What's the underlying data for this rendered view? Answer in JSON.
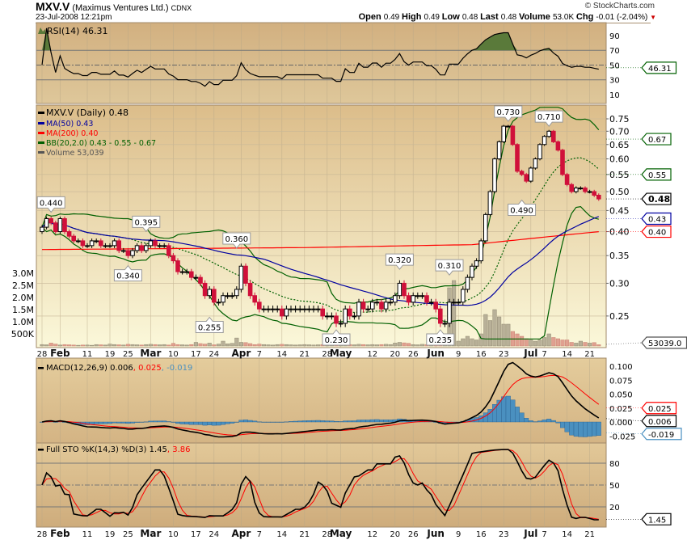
{
  "header": {
    "symbol": "MXV.V",
    "company": "(Maximus Ventures Ltd.)",
    "exchange": "CDNX",
    "datetime": "23-Jul-2008 12:21pm",
    "copyright": "© StockCharts.com",
    "quote": [
      {
        "label": "Open",
        "value": "0.49"
      },
      {
        "label": "High",
        "value": "0.49"
      },
      {
        "label": "Low",
        "value": "0.48"
      },
      {
        "label": "Last",
        "value": "0.48"
      },
      {
        "label": "Volume",
        "value": "53.0K"
      },
      {
        "label": "Chg",
        "value": "-0.01 (-2.04%)"
      }
    ],
    "change_direction": "down"
  },
  "colors": {
    "up": "#000000",
    "down": "#d0103a",
    "ma50": "#0000a0",
    "ma200": "#ff0000",
    "bb": "#006000",
    "macd_signal": "#ff0000",
    "histogram": "#4a90c0",
    "sto_d": "#ff0000",
    "rsi_fill": "#5a7a3a"
  },
  "chart_data": {
    "type": "candlestick",
    "price_scale": "log",
    "price_ylim": [
      0.22,
      0.8
    ],
    "grid": true,
    "legend": {
      "price": "MXV.V (Daily) 0.48",
      "ma50": "MA(50) 0.43",
      "ma200": "MA(200) 0.40",
      "bb": "BB(20,2.0) 0.43 - 0.55 - 0.67",
      "volume": "Volume 53,039"
    },
    "price_ticks": [
      "0.75",
      "0.70",
      "0.65",
      "0.60",
      "0.55",
      "0.50",
      "0.45",
      "0.40",
      "0.35",
      "0.30",
      "0.25"
    ],
    "volume_ticks": [
      "3.0M",
      "2.5M",
      "2.0M",
      "1.5M",
      "1.0M",
      "500K"
    ],
    "right_tags": [
      {
        "label": "0.67",
        "value": 0.67,
        "color": "#006000"
      },
      {
        "label": "0.55",
        "value": 0.55,
        "color": "#006000"
      },
      {
        "label": "0.48",
        "value": 0.48,
        "color": "#000000"
      },
      {
        "label": "0.43",
        "value": 0.43,
        "color": "#0000a0"
      },
      {
        "label": "0.40",
        "value": 0.4,
        "color": "#ff0000"
      }
    ],
    "volume_tag": "53039.0",
    "dates": [
      "01-28",
      "01-29",
      "01-30",
      "01-31",
      "02-01",
      "02-04",
      "02-05",
      "02-06",
      "02-07",
      "02-08",
      "02-11",
      "02-12",
      "02-13",
      "02-14",
      "02-15",
      "02-19",
      "02-20",
      "02-21",
      "02-22",
      "02-25",
      "02-26",
      "02-27",
      "02-28",
      "02-29",
      "03-03",
      "03-04",
      "03-05",
      "03-06",
      "03-07",
      "03-10",
      "03-11",
      "03-12",
      "03-13",
      "03-14",
      "03-17",
      "03-18",
      "03-19",
      "03-20",
      "03-24",
      "03-25",
      "03-26",
      "03-27",
      "03-28",
      "03-31",
      "04-01",
      "04-02",
      "04-03",
      "04-04",
      "04-07",
      "04-08",
      "04-09",
      "04-10",
      "04-11",
      "04-14",
      "04-15",
      "04-16",
      "04-17",
      "04-18",
      "04-21",
      "04-22",
      "04-23",
      "04-24",
      "04-25",
      "04-28",
      "04-29",
      "04-30",
      "05-01",
      "05-02",
      "05-05",
      "05-06",
      "05-07",
      "05-08",
      "05-09",
      "05-12",
      "05-13",
      "05-14",
      "05-15",
      "05-16",
      "05-20",
      "05-21",
      "05-22",
      "05-23",
      "05-26",
      "05-27",
      "05-28",
      "05-29",
      "05-30",
      "06-02",
      "06-03",
      "06-04",
      "06-05",
      "06-06",
      "06-09",
      "06-10",
      "06-11",
      "06-12",
      "06-13",
      "06-16",
      "06-17",
      "06-18",
      "06-19",
      "06-20",
      "06-23",
      "06-24",
      "06-25",
      "06-26",
      "06-27",
      "06-30",
      "07-02",
      "07-03",
      "07-04",
      "07-07",
      "07-08",
      "07-09",
      "07-10",
      "07-11",
      "07-14",
      "07-15",
      "07-16",
      "07-17",
      "07-18",
      "07-21",
      "07-22",
      "07-23"
    ],
    "close": [
      0.41,
      0.43,
      0.42,
      0.4,
      0.43,
      0.4,
      0.39,
      0.38,
      0.38,
      0.37,
      0.37,
      0.38,
      0.38,
      0.37,
      0.37,
      0.37,
      0.38,
      0.36,
      0.36,
      0.35,
      0.36,
      0.37,
      0.36,
      0.37,
      0.38,
      0.37,
      0.37,
      0.37,
      0.35,
      0.34,
      0.32,
      0.32,
      0.32,
      0.31,
      0.31,
      0.3,
      0.28,
      0.29,
      0.27,
      0.27,
      0.28,
      0.28,
      0.28,
      0.29,
      0.33,
      0.3,
      0.28,
      0.27,
      0.26,
      0.26,
      0.26,
      0.26,
      0.26,
      0.25,
      0.26,
      0.26,
      0.26,
      0.26,
      0.26,
      0.26,
      0.26,
      0.26,
      0.25,
      0.25,
      0.25,
      0.24,
      0.24,
      0.26,
      0.25,
      0.25,
      0.27,
      0.26,
      0.26,
      0.27,
      0.27,
      0.26,
      0.27,
      0.27,
      0.28,
      0.3,
      0.28,
      0.27,
      0.28,
      0.28,
      0.28,
      0.27,
      0.27,
      0.26,
      0.24,
      0.24,
      0.27,
      0.27,
      0.27,
      0.29,
      0.31,
      0.33,
      0.34,
      0.38,
      0.44,
      0.5,
      0.6,
      0.66,
      0.72,
      0.72,
      0.65,
      0.56,
      0.55,
      0.53,
      0.57,
      0.6,
      0.65,
      0.68,
      0.7,
      0.66,
      0.63,
      0.55,
      0.52,
      0.5,
      0.51,
      0.51,
      0.5,
      0.5,
      0.49,
      0.48
    ],
    "volume_k": [
      60,
      50,
      120,
      80,
      40,
      60,
      50,
      40,
      30,
      40,
      40,
      30,
      60,
      50,
      40,
      80,
      60,
      50,
      40,
      70,
      60,
      50,
      40,
      60,
      70,
      60,
      50,
      60,
      40,
      110,
      60,
      50,
      40,
      60,
      150,
      100,
      80,
      120,
      50,
      80,
      200,
      90,
      110,
      330,
      150,
      140,
      100,
      60,
      80,
      60,
      50,
      40,
      60,
      70,
      60,
      50,
      40,
      50,
      60,
      50,
      40,
      50,
      60,
      90,
      120,
      150,
      70,
      60,
      60,
      50,
      70,
      60,
      50,
      60,
      50,
      60,
      70,
      60,
      120,
      150,
      130,
      110,
      60,
      50,
      70,
      60,
      80,
      60,
      250,
      200,
      2400,
      2700,
      200,
      300,
      400,
      300,
      250,
      500,
      1300,
      1050,
      1500,
      1200,
      900,
      900,
      600,
      500,
      400,
      300,
      250,
      200,
      250,
      350,
      500,
      350,
      300,
      250,
      250,
      150,
      120,
      200,
      150,
      120,
      140,
      53
    ],
    "ma200_anchors": [
      [
        "01-28",
        0.362
      ],
      [
        "04-21",
        0.366
      ],
      [
        "06-12",
        0.372
      ],
      [
        "07-23",
        0.4
      ]
    ],
    "annotations": [
      {
        "label": "0.440",
        "date": "01-30",
        "value": 0.44,
        "pos": "above"
      },
      {
        "label": "0.395",
        "date": "02-29",
        "value": 0.395,
        "pos": "above"
      },
      {
        "label": "0.340",
        "date": "02-25",
        "value": 0.34,
        "pos": "below"
      },
      {
        "label": "0.360",
        "date": "03-31",
        "value": 0.36,
        "pos": "above"
      },
      {
        "label": "0.255",
        "date": "03-20",
        "value": 0.255,
        "pos": "below"
      },
      {
        "label": "0.230",
        "date": "04-30",
        "value": 0.23,
        "pos": "below"
      },
      {
        "label": "0.320",
        "date": "05-21",
        "value": 0.32,
        "pos": "above"
      },
      {
        "label": "0.235",
        "date": "06-03",
        "value": 0.235,
        "pos": "below"
      },
      {
        "label": "0.310",
        "date": "06-05",
        "value": 0.31,
        "pos": "above"
      },
      {
        "label": "0.730",
        "date": "06-24",
        "value": 0.73,
        "pos": "above"
      },
      {
        "label": "0.710",
        "date": "07-08",
        "value": 0.71,
        "pos": "above"
      },
      {
        "label": "0.490",
        "date": "06-27",
        "value": 0.49,
        "pos": "below"
      }
    ],
    "x_ticks": [
      {
        "label": "28",
        "date": "01-28",
        "bold": false
      },
      {
        "label": "Feb",
        "date": "02-01",
        "bold": true
      },
      {
        "label": "11",
        "date": "02-11",
        "bold": false
      },
      {
        "label": "19",
        "date": "02-19",
        "bold": false
      },
      {
        "label": "25",
        "date": "02-25",
        "bold": false
      },
      {
        "label": "Mar",
        "date": "03-03",
        "bold": true
      },
      {
        "label": "10",
        "date": "03-10",
        "bold": false
      },
      {
        "label": "17",
        "date": "03-17",
        "bold": false
      },
      {
        "label": "24",
        "date": "03-24",
        "bold": false
      },
      {
        "label": "Apr",
        "date": "04-01",
        "bold": true
      },
      {
        "label": "7",
        "date": "04-07",
        "bold": false
      },
      {
        "label": "14",
        "date": "04-14",
        "bold": false
      },
      {
        "label": "21",
        "date": "04-21",
        "bold": false
      },
      {
        "label": "28",
        "date": "04-28",
        "bold": false
      },
      {
        "label": "May",
        "date": "05-01",
        "bold": true
      },
      {
        "label": "12",
        "date": "05-12",
        "bold": false
      },
      {
        "label": "20",
        "date": "05-20",
        "bold": false
      },
      {
        "label": "26",
        "date": "05-26",
        "bold": false
      },
      {
        "label": "Jun",
        "date": "06-02",
        "bold": true
      },
      {
        "label": "9",
        "date": "06-09",
        "bold": false
      },
      {
        "label": "16",
        "date": "06-16",
        "bold": false
      },
      {
        "label": "23",
        "date": "06-23",
        "bold": false
      },
      {
        "label": "Jul",
        "date": "07-02",
        "bold": true
      },
      {
        "label": "7",
        "date": "07-07",
        "bold": false
      },
      {
        "label": "14",
        "date": "07-14",
        "bold": false
      },
      {
        "label": "21",
        "date": "07-21",
        "bold": false
      }
    ],
    "rsi": {
      "legend": "RSI(14) 46.31",
      "ticks": [
        "90",
        "70",
        "50",
        "30",
        "10"
      ],
      "tag": "46.31",
      "levels": [
        70,
        30
      ],
      "mid": 50
    },
    "macd": {
      "legend_main": "MACD(12,26,9) 0.006",
      "legend_signal": ", 0.025",
      "legend_hist": ", -0.019",
      "ticks": [
        "0.100",
        "0.075",
        "0.050",
        "0.025",
        "0.000",
        "-0.025"
      ],
      "tags": [
        {
          "label": "0.025",
          "color": "#ff0000",
          "value": 0.025
        },
        {
          "label": "0.006",
          "color": "#000000",
          "value": 0.006
        },
        {
          "label": "-0.019",
          "color": "#4a90c0",
          "value": -0.019
        }
      ]
    },
    "sto": {
      "legend_main": "Full STO %K(14,3) %D(3) 1.45",
      "legend_d": ", 3.86",
      "ticks": [
        "80",
        "50",
        "20"
      ],
      "tag": "1.45"
    }
  }
}
